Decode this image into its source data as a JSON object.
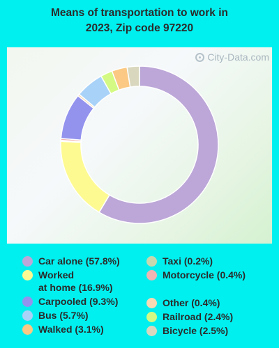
{
  "chart_data": {
    "type": "donut",
    "title": "Means of transportation to work in 2023, Zip code 97220",
    "watermark": "City-Data.com",
    "slices": [
      {
        "label": "Car alone (57.8%)",
        "value": 57.8,
        "color": "#bca7d8"
      },
      {
        "label": "Worked at home (16.9%)",
        "value": 16.9,
        "color": "#fdfa92"
      },
      {
        "label": "Taxi (0.2%)",
        "value": 0.2,
        "color": "#c7d8ae"
      },
      {
        "label": "Motorcycle (0.4%)",
        "value": 0.4,
        "color": "#f0b4b2"
      },
      {
        "label": "Carpooled (9.3%)",
        "value": 9.3,
        "color": "#9393ee"
      },
      {
        "label": "Other (0.4%)",
        "value": 0.4,
        "color": "#f7d9b4"
      },
      {
        "label": "Bus (5.7%)",
        "value": 5.7,
        "color": "#a9d2f8"
      },
      {
        "label": "Railroad (2.4%)",
        "value": 2.4,
        "color": "#d4fa84"
      },
      {
        "label": "Walked (3.1%)",
        "value": 3.1,
        "color": "#fbc983"
      },
      {
        "label": "Bicycle (2.5%)",
        "value": 2.5,
        "color": "#d9d8bf"
      }
    ],
    "legend": {
      "col1": [
        {
          "label": "Car alone (57.8%)",
          "color": "#bca7d8"
        },
        {
          "label": "Worked",
          "label2": "at home (16.9%)",
          "color": "#fdfa92"
        },
        {
          "label": "Carpooled (9.3%)",
          "color": "#9393ee"
        },
        {
          "label": "Bus (5.7%)",
          "color": "#a9d2f8"
        },
        {
          "label": "Walked (3.1%)",
          "color": "#fbc983"
        }
      ],
      "col2": [
        {
          "label": "Taxi (0.2%)",
          "color": "#c7d8ae"
        },
        {
          "label": "Motorcycle (0.4%)",
          "color": "#f0b4b2"
        },
        {
          "label": "",
          "color": ""
        },
        {
          "label": "Other (0.4%)",
          "color": "#f7d9b4"
        },
        {
          "label": "Railroad (2.4%)",
          "color": "#d4fa84"
        },
        {
          "label": "Bicycle (2.5%)",
          "color": "#d9d8bf"
        }
      ]
    }
  }
}
